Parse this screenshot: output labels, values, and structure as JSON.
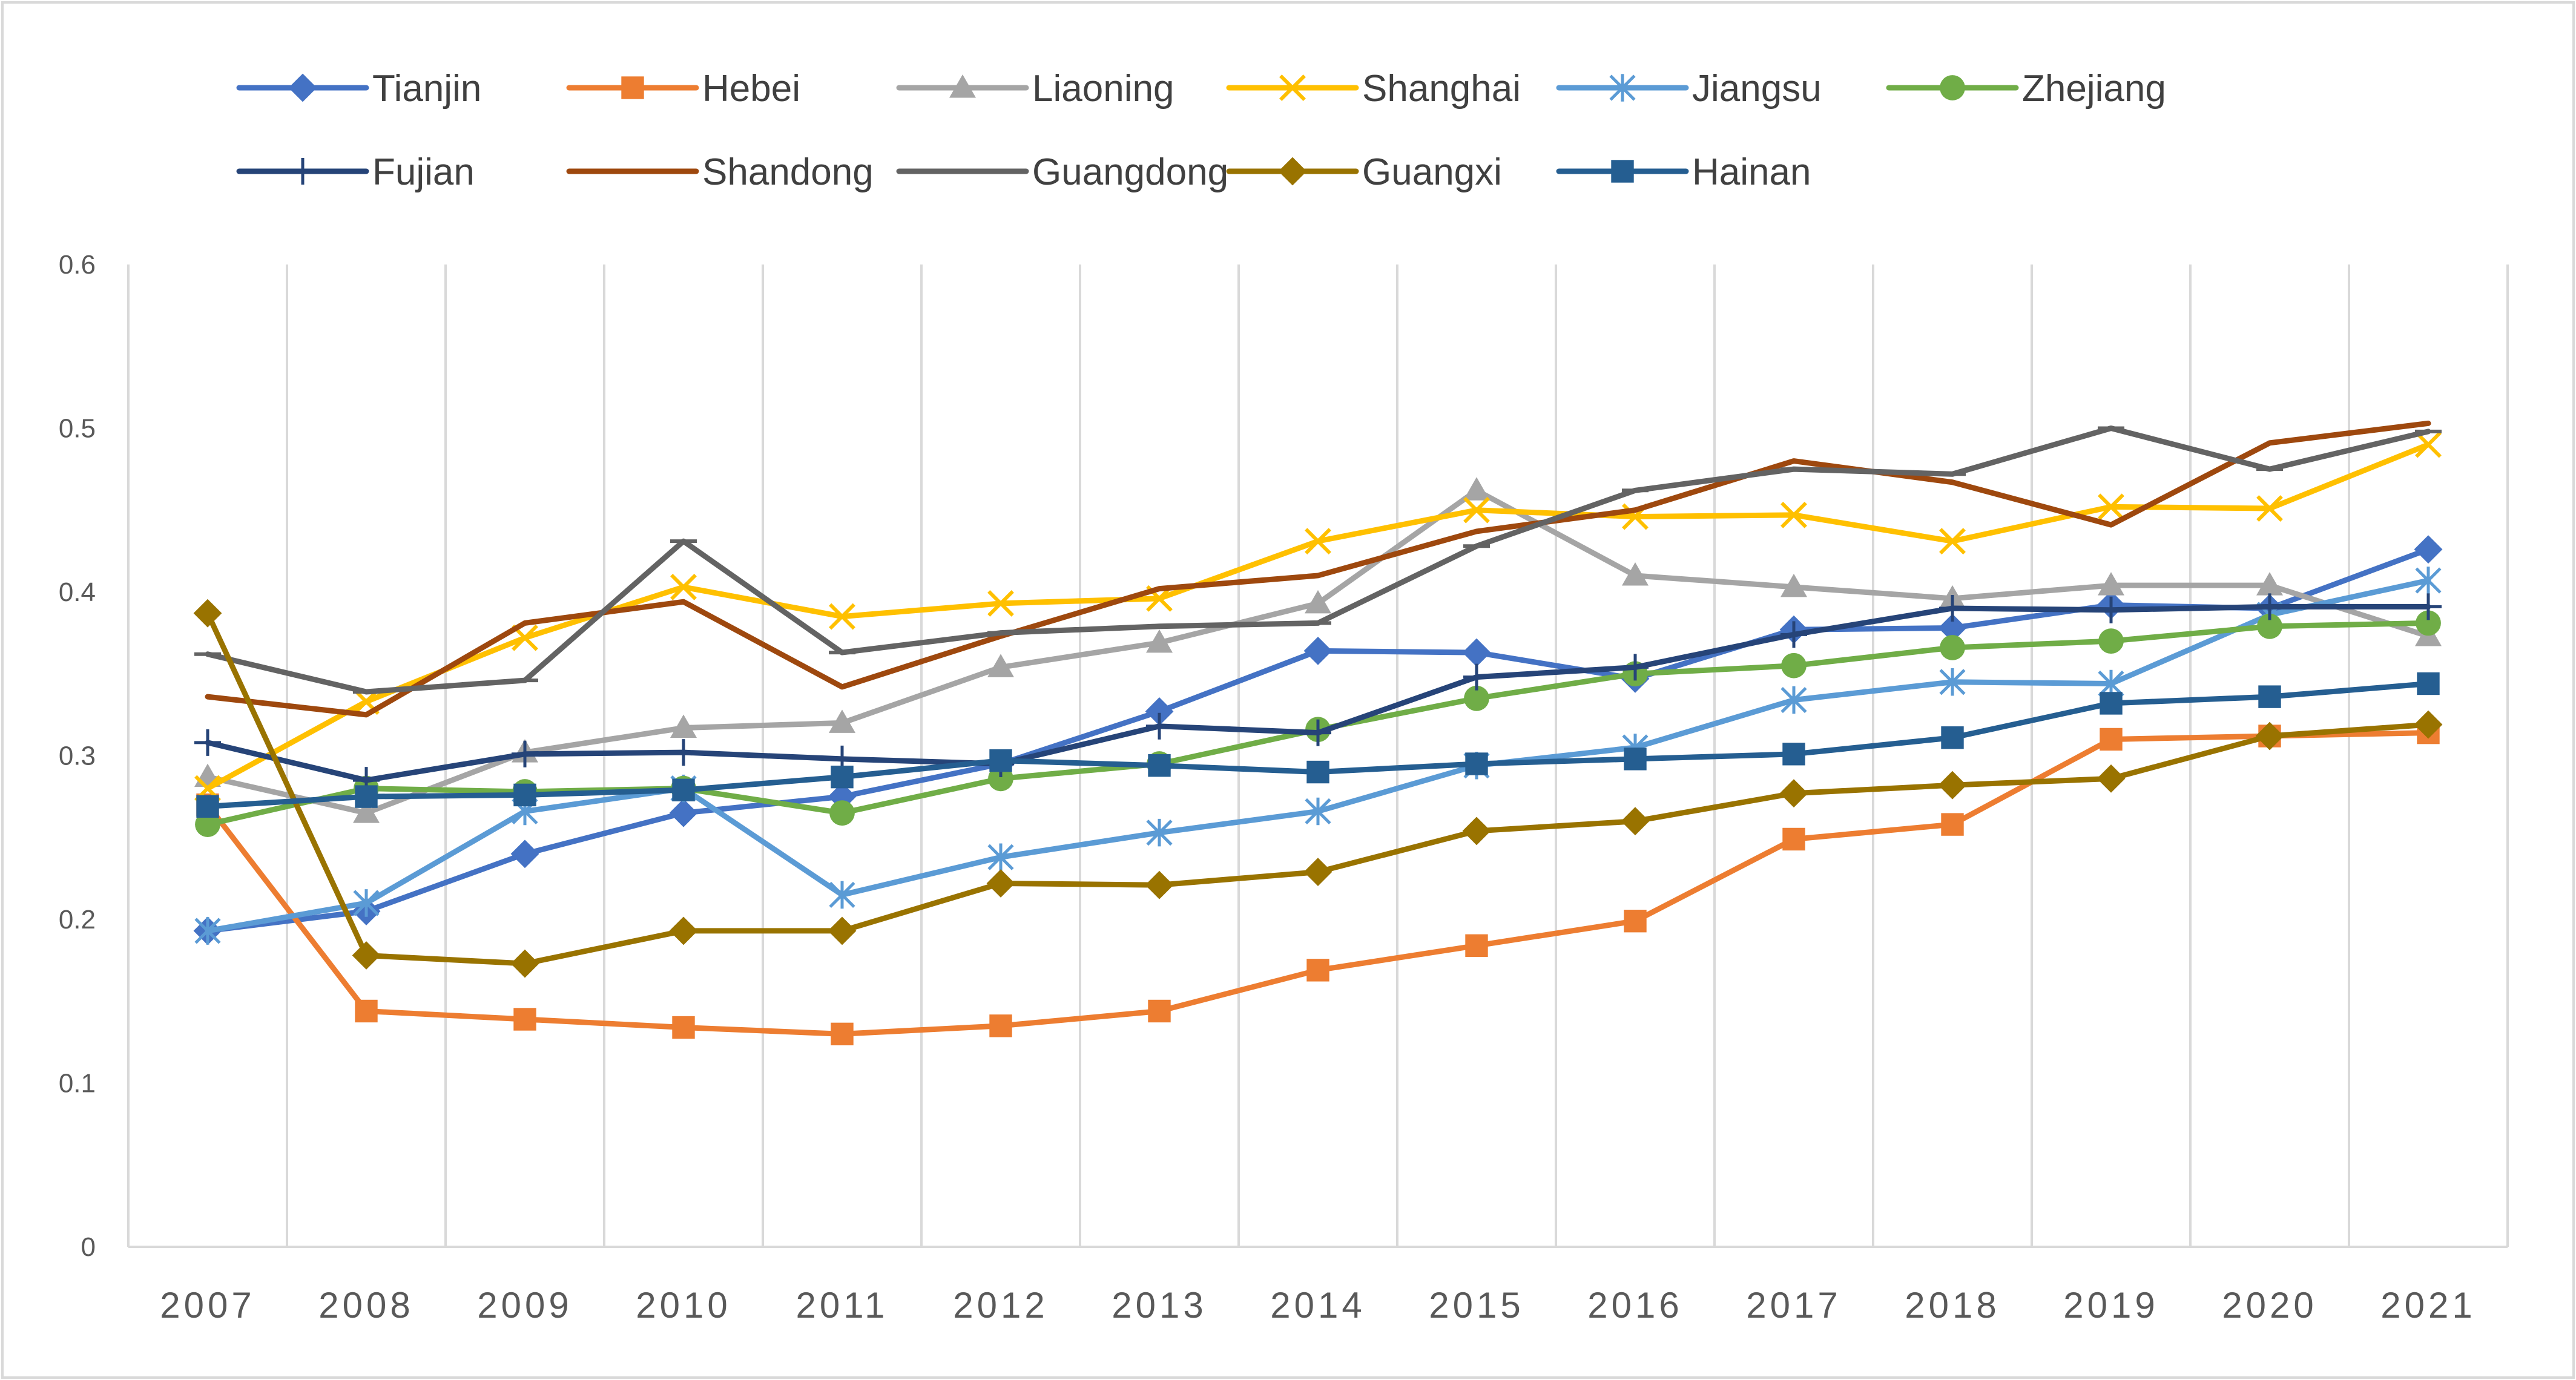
{
  "chart_data": {
    "type": "line",
    "title": "",
    "xlabel": "",
    "ylabel": "",
    "ylim": [
      0,
      0.6
    ],
    "yticks": [
      "0",
      "0.1",
      "0.2",
      "0.3",
      "0.4",
      "0.5",
      "0.6"
    ],
    "grid": "vertical",
    "legend_position": "top",
    "categories": [
      "2007",
      "2008",
      "2009",
      "2010",
      "2011",
      "2012",
      "2013",
      "2014",
      "2015",
      "2016",
      "2017",
      "2018",
      "2019",
      "2020",
      "2021"
    ],
    "series": [
      {
        "name": "Tianjin",
        "color": "#4472C4",
        "marker": "diamond",
        "values": [
          0.193,
          0.205,
          0.24,
          0.265,
          0.275,
          0.295,
          0.327,
          0.364,
          0.363,
          0.347,
          0.377,
          0.378,
          0.392,
          0.39,
          0.426
        ]
      },
      {
        "name": "Hebei",
        "color": "#ED7D31",
        "marker": "square",
        "values": [
          0.27,
          0.144,
          0.139,
          0.134,
          0.13,
          0.135,
          0.144,
          0.169,
          0.184,
          0.199,
          0.249,
          0.258,
          0.31,
          0.312,
          0.314
        ]
      },
      {
        "name": "Liaoning",
        "color": "#A5A5A5",
        "marker": "triangle",
        "values": [
          0.287,
          0.265,
          0.302,
          0.317,
          0.32,
          0.354,
          0.369,
          0.393,
          0.462,
          0.41,
          0.403,
          0.396,
          0.404,
          0.404,
          0.373
        ]
      },
      {
        "name": "Shanghai",
        "color": "#FFC000",
        "marker": "x",
        "values": [
          0.28,
          0.333,
          0.372,
          0.403,
          0.385,
          0.393,
          0.396,
          0.431,
          0.45,
          0.446,
          0.447,
          0.431,
          0.452,
          0.451,
          0.49
        ]
      },
      {
        "name": "Jiangsu",
        "color": "#5B9BD5",
        "marker": "star",
        "values": [
          0.193,
          0.21,
          0.266,
          0.28,
          0.215,
          0.238,
          0.253,
          0.266,
          0.294,
          0.305,
          0.334,
          0.345,
          0.344,
          0.386,
          0.407
        ]
      },
      {
        "name": "Zhejiang",
        "color": "#70AD47",
        "marker": "circle",
        "values": [
          0.258,
          0.28,
          0.278,
          0.28,
          0.265,
          0.286,
          0.295,
          0.316,
          0.335,
          0.35,
          0.355,
          0.366,
          0.37,
          0.379,
          0.381
        ]
      },
      {
        "name": "Fujian",
        "color": "#264478",
        "marker": "plus",
        "values": [
          0.308,
          0.285,
          0.301,
          0.302,
          0.298,
          0.295,
          0.318,
          0.314,
          0.348,
          0.354,
          0.374,
          0.39,
          0.389,
          0.391,
          0.391
        ]
      },
      {
        "name": "Shandong",
        "color": "#9E480E",
        "marker": "none",
        "values": [
          0.336,
          0.325,
          0.381,
          0.394,
          0.342,
          0.373,
          0.402,
          0.41,
          0.437,
          0.45,
          0.48,
          0.467,
          0.441,
          0.491,
          0.503
        ]
      },
      {
        "name": "Guangdong",
        "color": "#636363",
        "marker": "dash",
        "values": [
          0.362,
          0.339,
          0.346,
          0.431,
          0.363,
          0.375,
          0.379,
          0.381,
          0.428,
          0.462,
          0.475,
          0.472,
          0.5,
          0.475,
          0.498
        ]
      },
      {
        "name": "Guangxi",
        "color": "#997300",
        "marker": "diamond",
        "values": [
          0.387,
          0.178,
          0.173,
          0.193,
          0.193,
          0.222,
          0.221,
          0.229,
          0.254,
          0.26,
          0.277,
          0.282,
          0.286,
          0.312,
          0.319
        ]
      },
      {
        "name": "Hainan",
        "color": "#255E91",
        "marker": "square",
        "values": [
          0.269,
          0.275,
          0.276,
          0.279,
          0.287,
          0.297,
          0.294,
          0.29,
          0.295,
          0.298,
          0.301,
          0.311,
          0.332,
          0.336,
          0.344
        ]
      }
    ]
  }
}
